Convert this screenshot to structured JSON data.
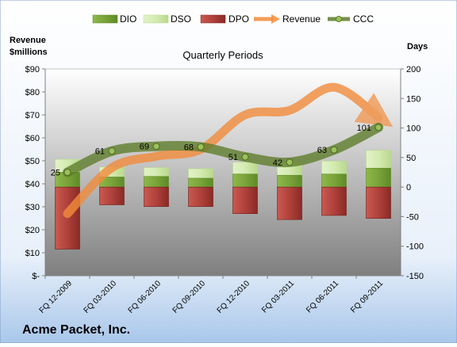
{
  "chart_data": {
    "type": "combo",
    "title": "Quarterly Periods",
    "company": "Acme Packet, Inc.",
    "left_axis": {
      "label_line1": "Revenue",
      "label_line2": "$millions",
      "range": [
        0,
        90
      ],
      "ticks": [
        0,
        10,
        20,
        30,
        40,
        50,
        60,
        70,
        80,
        90
      ],
      "tick_labels": [
        "$-",
        "$10",
        "$20",
        "$30",
        "$40",
        "$50",
        "$60",
        "$70",
        "$80",
        "$90"
      ]
    },
    "right_axis": {
      "label": "Days",
      "range": [
        -150,
        200
      ],
      "ticks": [
        -150,
        -100,
        -50,
        0,
        50,
        100,
        150,
        200
      ],
      "tick_labels": [
        "-150",
        "-100",
        "-50",
        "0",
        "50",
        "100",
        "150",
        "200"
      ]
    },
    "categories": [
      "FQ 12-2009",
      "FQ 03-2010",
      "FQ 06-2010",
      "FQ 09-2010",
      "FQ 12-2010",
      "FQ 03-2011",
      "FQ 06-2011",
      "FQ 09-2011"
    ],
    "series": [
      {
        "name": "DIO",
        "kind": "stacked-bar",
        "axis": "days",
        "values": [
          25,
          17,
          18,
          15,
          22,
          20,
          22,
          32
        ],
        "color": "#7aa33a"
      },
      {
        "name": "DSO",
        "kind": "stacked-bar",
        "axis": "days",
        "values": [
          22,
          17,
          15,
          16,
          20,
          22,
          22,
          30
        ],
        "color": "#d4ebb0"
      },
      {
        "name": "DPO",
        "kind": "stacked-bar",
        "axis": "days",
        "values": [
          -105,
          -30,
          -33,
          -33,
          -45,
          -55,
          -48,
          -53
        ],
        "color": "#c0392b"
      },
      {
        "name": "Revenue",
        "kind": "line",
        "axis": "revenue",
        "values": [
          27,
          47,
          52,
          55,
          70,
          72,
          82,
          69
        ],
        "color": "#f28c3c"
      },
      {
        "name": "CCC",
        "kind": "line",
        "axis": "days",
        "values": [
          25,
          61,
          69,
          68,
          51,
          42,
          63,
          101
        ],
        "labels": [
          "25",
          "61",
          "69",
          "68",
          "51",
          "42",
          "63",
          "101"
        ],
        "color": "#5f7d2c"
      }
    ],
    "legend_position": "top",
    "grid": false
  }
}
